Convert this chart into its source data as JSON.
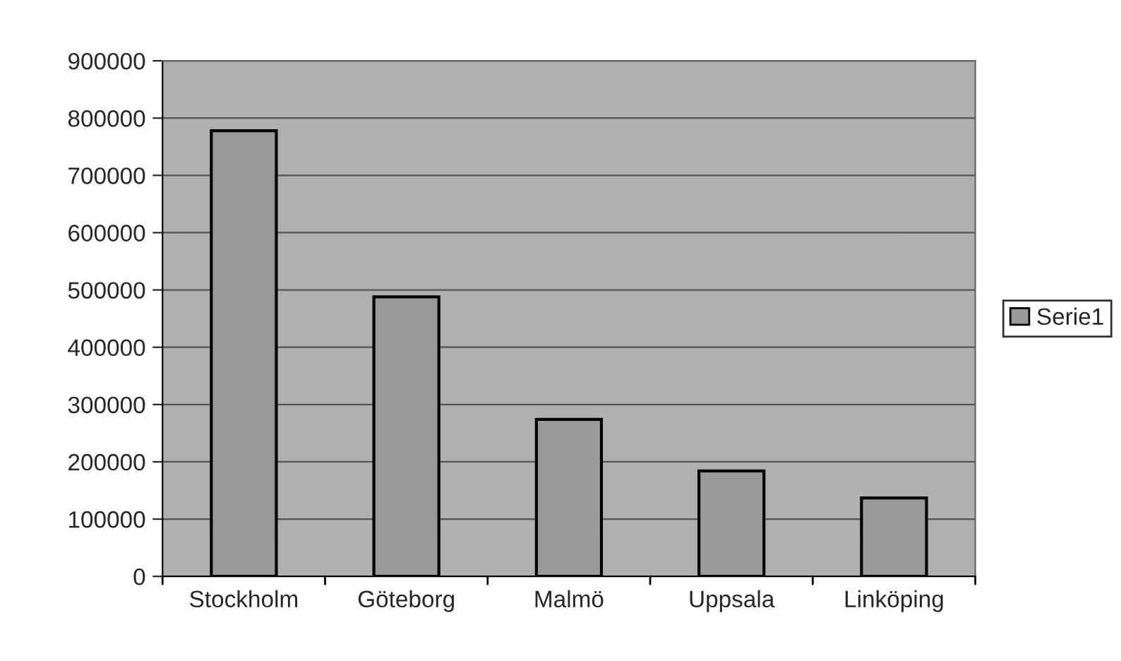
{
  "chart_data": {
    "type": "bar",
    "categories": [
      "Stockholm",
      "Göteborg",
      "Malmö",
      "Uppsala",
      "Linköping"
    ],
    "series": [
      {
        "name": "Serie1",
        "color": "#9a9a9a",
        "values": [
          778000,
          488000,
          274000,
          184000,
          137000
        ]
      }
    ],
    "ylim": [
      0,
      900000
    ],
    "yticks": [
      0,
      100000,
      200000,
      300000,
      400000,
      500000,
      600000,
      700000,
      800000,
      900000
    ],
    "grid": "y",
    "legend": "right"
  }
}
